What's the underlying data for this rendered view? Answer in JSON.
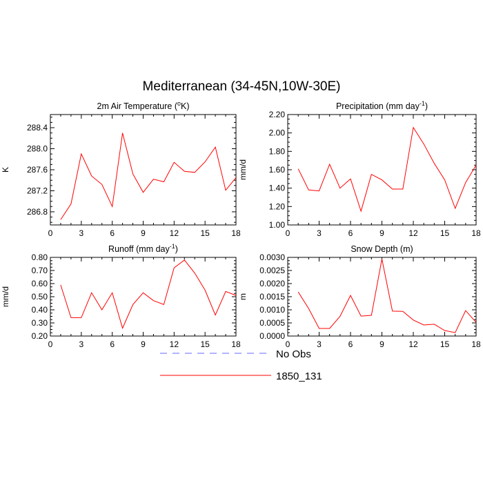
{
  "figure": {
    "title": "Mediterranean (34-45N,10W-30E)"
  },
  "legend": {
    "items": [
      {
        "label": "No Obs",
        "color": "#6666ff",
        "dashed": true
      },
      {
        "label": "1850_131",
        "color": "#ff0000",
        "dashed": false
      }
    ]
  },
  "chart_data": [
    {
      "type": "line",
      "title": "2m Air Temperature (°K)",
      "title_parts": [
        "2m Air Temperature (",
        "o",
        "K)"
      ],
      "xlabel": "",
      "ylabel": "K",
      "xlim": [
        0,
        18
      ],
      "ylim": [
        286.55,
        288.65
      ],
      "xticks": [
        0,
        3,
        6,
        9,
        12,
        15,
        18
      ],
      "xtick_labels": [
        "0",
        "3",
        "6",
        "9",
        "12",
        "15",
        "18"
      ],
      "yticks": [
        286.8,
        287.2,
        287.6,
        288.0,
        288.4
      ],
      "ytick_labels": [
        "286.8",
        "287.2",
        "287.6",
        "288.0",
        "288.4"
      ],
      "x": [
        1,
        2,
        3,
        4,
        5,
        6,
        7,
        8,
        9,
        10,
        11,
        12,
        13,
        14,
        15,
        16,
        17,
        18
      ],
      "series": [
        {
          "name": "1850_131",
          "color": "#ff0000",
          "values": [
            286.65,
            286.95,
            287.9,
            287.48,
            287.32,
            286.9,
            288.3,
            287.52,
            287.17,
            287.42,
            287.37,
            287.74,
            287.57,
            287.55,
            287.75,
            288.03,
            287.21,
            287.45
          ]
        }
      ]
    },
    {
      "type": "line",
      "title": "Precipitation (mm day⁻¹)",
      "title_parts": [
        "Precipitation (mm day",
        "-1",
        ")"
      ],
      "xlabel": "",
      "ylabel": "mm/d",
      "xlim": [
        0,
        18
      ],
      "ylim": [
        1.0,
        2.2
      ],
      "xticks": [
        0,
        3,
        6,
        9,
        12,
        15,
        18
      ],
      "xtick_labels": [
        "0",
        "3",
        "6",
        "9",
        "12",
        "15",
        "18"
      ],
      "yticks": [
        1.0,
        1.2,
        1.4,
        1.6,
        1.8,
        2.0,
        2.2
      ],
      "ytick_labels": [
        "1.00",
        "1.20",
        "1.40",
        "1.60",
        "1.80",
        "2.00",
        "2.20"
      ],
      "x": [
        1,
        2,
        3,
        4,
        5,
        6,
        7,
        8,
        9,
        10,
        11,
        12,
        13,
        14,
        15,
        16,
        17,
        18
      ],
      "series": [
        {
          "name": "1850_131",
          "color": "#ff0000",
          "values": [
            1.61,
            1.38,
            1.37,
            1.66,
            1.4,
            1.5,
            1.15,
            1.55,
            1.49,
            1.39,
            1.39,
            2.06,
            1.88,
            1.67,
            1.49,
            1.18,
            1.46,
            1.65
          ]
        }
      ]
    },
    {
      "type": "line",
      "title": "Runoff (mm day⁻¹)",
      "title_parts": [
        "Runoff (mm day",
        "-1",
        ")"
      ],
      "xlabel": "",
      "ylabel": "mm/d",
      "xlim": [
        0,
        18
      ],
      "ylim": [
        0.2,
        0.8
      ],
      "xticks": [
        0,
        3,
        6,
        9,
        12,
        15,
        18
      ],
      "xtick_labels": [
        "0",
        "3",
        "6",
        "9",
        "12",
        "15",
        "18"
      ],
      "yticks": [
        0.2,
        0.3,
        0.4,
        0.5,
        0.6,
        0.7,
        0.8
      ],
      "ytick_labels": [
        "0.20",
        "0.30",
        "0.40",
        "0.50",
        "0.60",
        "0.70",
        "0.80"
      ],
      "x": [
        1,
        2,
        3,
        4,
        5,
        6,
        7,
        8,
        9,
        10,
        11,
        12,
        13,
        14,
        15,
        16,
        17,
        18
      ],
      "series": [
        {
          "name": "1850_131",
          "color": "#ff0000",
          "values": [
            0.59,
            0.34,
            0.34,
            0.53,
            0.4,
            0.53,
            0.26,
            0.44,
            0.53,
            0.47,
            0.44,
            0.72,
            0.78,
            0.68,
            0.55,
            0.36,
            0.54,
            0.51
          ]
        }
      ]
    },
    {
      "type": "line",
      "title": "Snow Depth (m)",
      "title_parts": [
        "Snow Depth (m)",
        "",
        ""
      ],
      "xlabel": "",
      "ylabel": "m",
      "xlim": [
        0,
        18
      ],
      "ylim": [
        0,
        0.003
      ],
      "xticks": [
        0,
        3,
        6,
        9,
        12,
        15,
        18
      ],
      "xtick_labels": [
        "0",
        "3",
        "6",
        "9",
        "12",
        "15",
        "18"
      ],
      "yticks": [
        0,
        0.0005,
        0.001,
        0.0015,
        0.002,
        0.0025,
        0.003
      ],
      "ytick_labels": [
        "0.0000",
        "0.0005",
        "0.0010",
        "0.0015",
        "0.0020",
        "0.0025",
        "0.0030"
      ],
      "x": [
        1,
        2,
        3,
        4,
        5,
        6,
        7,
        8,
        9,
        10,
        11,
        12,
        13,
        14,
        15,
        16,
        17,
        18
      ],
      "series": [
        {
          "name": "1850_131",
          "color": "#ff0000",
          "values": [
            0.00168,
            0.00105,
            0.00029,
            0.00029,
            0.00075,
            0.00155,
            0.00076,
            0.00079,
            0.00294,
            0.00095,
            0.00094,
            0.00061,
            0.00042,
            0.00045,
            0.00021,
            0.00013,
            0.00097,
            0.00052
          ]
        }
      ]
    }
  ]
}
